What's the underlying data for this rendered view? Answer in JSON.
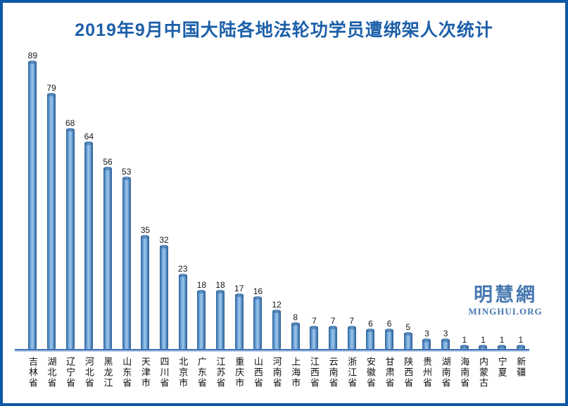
{
  "frame": {
    "border_color": "#0d57a6",
    "background": "#ffffff"
  },
  "watermark": {
    "cn": "明慧網",
    "en": "MINGHUI.ORG",
    "color": "#4677b0"
  },
  "chart_data": {
    "type": "bar",
    "title": "2019年9月中国大陆各地法轮功学员遭绑架人次统计",
    "title_color": "#1c5fa9",
    "categories": [
      "吉林省",
      "湖北省",
      "辽宁省",
      "河北省",
      "黑龙江",
      "山东省",
      "天津市",
      "四川省",
      "北京市",
      "广东省",
      "江苏省",
      "重庆市",
      "山西省",
      "河南省",
      "上海市",
      "江西省",
      "云南省",
      "浙江省",
      "安徽省",
      "甘肃省",
      "陕西省",
      "贵州省",
      "湖南省",
      "海南省",
      "内蒙古",
      "宁夏",
      "新疆"
    ],
    "values": [
      89,
      79,
      68,
      64,
      56,
      53,
      35,
      32,
      23,
      18,
      18,
      17,
      16,
      12,
      8,
      7,
      7,
      7,
      6,
      6,
      5,
      3,
      3,
      1,
      1,
      1,
      1
    ],
    "xlabel": "",
    "ylabel": "",
    "ylim": [
      0,
      89
    ],
    "grid": false,
    "legend": false,
    "value_labels": true,
    "bar_style": "cylinder-3d",
    "bar_color_center": "#9dc5ea",
    "bar_color_edge": "#2d5f95",
    "axis_color": "#3f6db4",
    "label_orientation": "vertical"
  }
}
